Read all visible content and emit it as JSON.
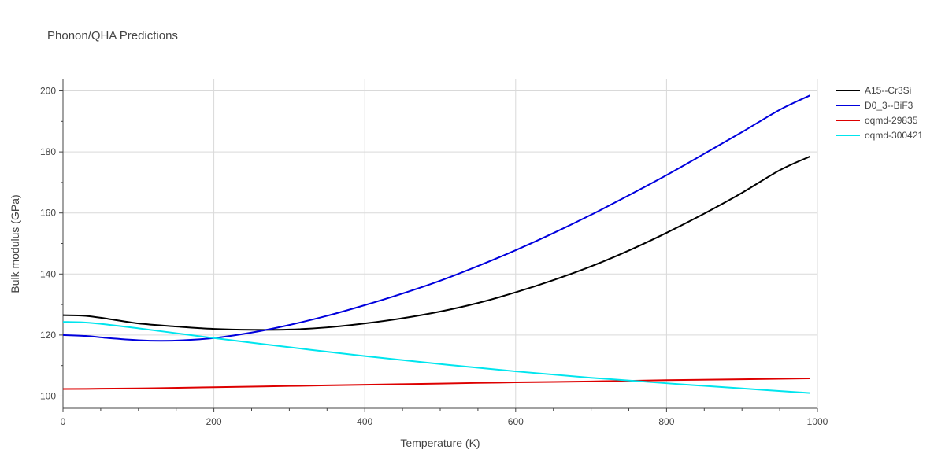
{
  "chart_data": {
    "type": "line",
    "title": "Phonon/QHA Predictions",
    "xlabel": "Temperature (K)",
    "ylabel": "Bulk modulus (GPa)",
    "xlim": [
      0,
      1000
    ],
    "ylim": [
      96,
      204
    ],
    "xticks": [
      0,
      200,
      400,
      600,
      800,
      1000
    ],
    "yticks": [
      100,
      120,
      140,
      160,
      180,
      200
    ],
    "grid": true,
    "legend_position": "top-right",
    "series": [
      {
        "name": "A15--Cr3Si",
        "color": "#000000",
        "x": [
          0,
          30,
          60,
          100,
          150,
          200,
          250,
          300,
          350,
          400,
          450,
          500,
          550,
          600,
          650,
          700,
          750,
          800,
          850,
          900,
          950,
          990
        ],
        "y": [
          126.5,
          126.3,
          125.3,
          123.8,
          122.8,
          122.0,
          121.7,
          121.8,
          122.5,
          123.8,
          125.5,
          127.7,
          130.5,
          134.0,
          138.0,
          142.5,
          147.7,
          153.5,
          159.8,
          166.6,
          174.0,
          178.5
        ]
      },
      {
        "name": "D0_3--BiF3",
        "color": "#0000dd",
        "x": [
          0,
          30,
          60,
          100,
          130,
          160,
          200,
          250,
          300,
          350,
          400,
          450,
          500,
          550,
          600,
          650,
          700,
          750,
          800,
          850,
          900,
          950,
          990
        ],
        "y": [
          120.0,
          119.7,
          119.0,
          118.3,
          118.1,
          118.3,
          119.0,
          120.8,
          123.3,
          126.3,
          129.8,
          133.6,
          137.8,
          142.6,
          147.8,
          153.4,
          159.4,
          165.8,
          172.4,
          179.4,
          186.5,
          193.8,
          198.5
        ]
      },
      {
        "name": "oqmd-29835",
        "color": "#dd0000",
        "x": [
          0,
          50,
          100,
          130,
          200,
          300,
          400,
          500,
          600,
          700,
          800,
          900,
          990
        ],
        "y": [
          102.3,
          102.4,
          102.5,
          102.6,
          102.9,
          103.3,
          103.7,
          104.1,
          104.5,
          104.8,
          105.2,
          105.5,
          105.8
        ]
      },
      {
        "name": "oqmd-300421",
        "color": "#00e5ee",
        "x": [
          0,
          30,
          60,
          100,
          150,
          200,
          300,
          400,
          500,
          600,
          700,
          800,
          900,
          990
        ],
        "y": [
          124.3,
          124.1,
          123.4,
          122.2,
          120.6,
          119.0,
          116.0,
          113.1,
          110.5,
          108.1,
          106.0,
          104.2,
          102.5,
          101.0
        ]
      }
    ]
  }
}
